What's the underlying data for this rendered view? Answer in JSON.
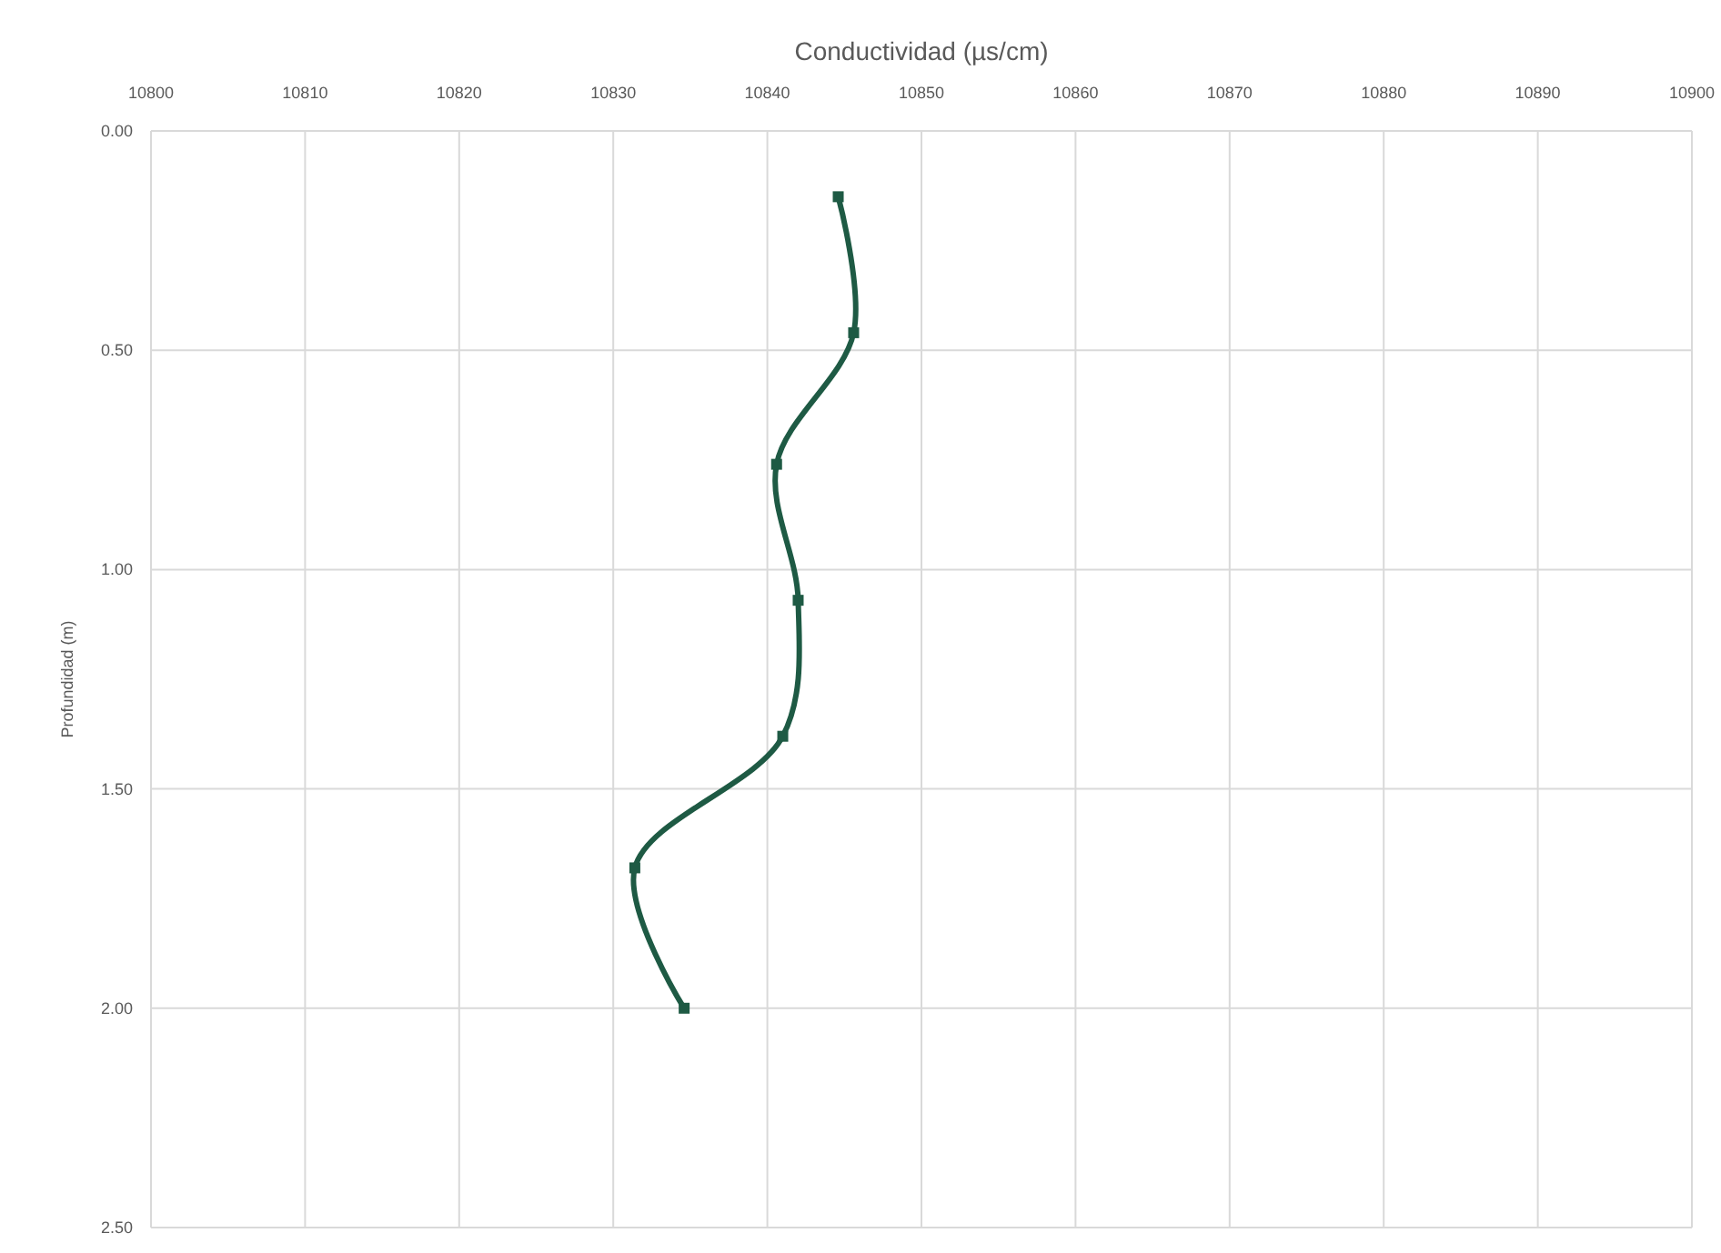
{
  "chart_data": {
    "type": "line",
    "title": "Conductividad (µs/cm)",
    "ylabel": "Profundidad (m)",
    "x": [
      10844.6,
      10845.6,
      10840.6,
      10842.0,
      10841.0,
      10831.4,
      10834.6
    ],
    "series": [
      {
        "color": "#1e5a44",
        "values": [
          0.15,
          0.46,
          0.76,
          1.07,
          1.38,
          1.68,
          2.0
        ]
      }
    ],
    "xlim": [
      10800,
      10900
    ],
    "xticks": [
      10800,
      10810,
      10820,
      10830,
      10840,
      10850,
      10860,
      10870,
      10880,
      10890,
      10900
    ],
    "ylim": [
      2.5,
      0
    ],
    "yticks": [
      {
        "value": 0,
        "label": "0.00"
      },
      {
        "value": 0.5,
        "label": "0.50"
      },
      {
        "value": 1,
        "label": "1.00"
      },
      {
        "value": 1.5,
        "label": "1.50"
      },
      {
        "value": 2,
        "label": "2.00"
      },
      {
        "value": 2.5,
        "label": "2.50"
      }
    ],
    "grid": true,
    "marker": "square",
    "line_style": "solid"
  }
}
